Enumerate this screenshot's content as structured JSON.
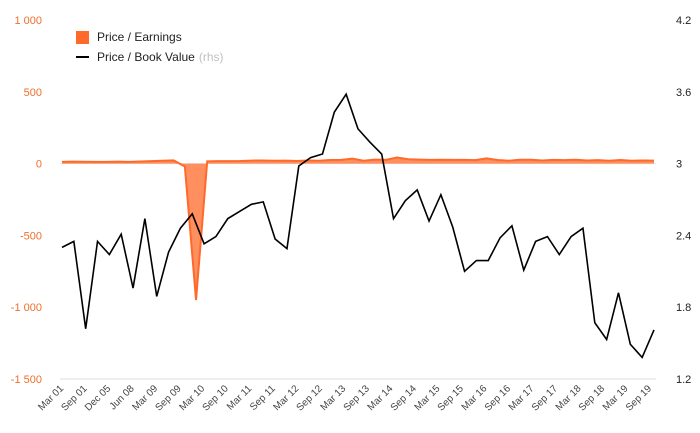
{
  "chart_data": {
    "type": "line",
    "legend": {
      "pe_label": "Price / Earnings",
      "pb_label": "Price / Book Value",
      "pb_note": "(rhs)"
    },
    "colors": {
      "pe": "#ff6a2a",
      "pb": "#000000",
      "left_axis": "#f06e2a",
      "right_axis": "#222222"
    },
    "left_axis": {
      "ylim": [
        -1500,
        1000
      ],
      "ticks": [
        1000,
        500,
        0,
        -500,
        -1000,
        -1500
      ],
      "tick_labels": [
        "1 000",
        "500",
        "0",
        "-500",
        "-1 000",
        "-1 500"
      ]
    },
    "right_axis": {
      "ylim": [
        1.2,
        4.2
      ],
      "ticks": [
        4.2,
        3.6,
        3,
        2.4,
        1.8,
        1.2
      ],
      "tick_labels": [
        "4.2",
        "3.6",
        "3",
        "2.4",
        "1.8",
        "1.2"
      ]
    },
    "x_labels": [
      "Mar 01",
      "Sep 01",
      "Dec 05",
      "Jun 08",
      "Mar 09",
      "Sep 09",
      "Mar 10",
      "Sep 10",
      "Mar 11",
      "Sep 11",
      "Mar 12",
      "Sep 12",
      "Mar 13",
      "Sep 13",
      "Mar 14",
      "Sep 14",
      "Mar 15",
      "Sep 15",
      "Mar 16",
      "Sep 16",
      "Mar 17",
      "Sep 17",
      "Mar 18",
      "Sep 18",
      "Mar 19",
      "Sep 19"
    ],
    "series": [
      {
        "name": "Price / Earnings",
        "axis": "left",
        "style": "area",
        "values": [
          12,
          14,
          13,
          12,
          12,
          14,
          12,
          15,
          17,
          20,
          22,
          -20,
          -950,
          16,
          17,
          17,
          18,
          21,
          22,
          20,
          21,
          18,
          22,
          20,
          25,
          26,
          35,
          20,
          28,
          26,
          42,
          30,
          28,
          26,
          27,
          26,
          26,
          24,
          36,
          25,
          20,
          27,
          27,
          22,
          26,
          24,
          27,
          22,
          24,
          20,
          25,
          20,
          22,
          21
        ]
      },
      {
        "name": "Price / Book Value",
        "axis": "right",
        "style": "line",
        "values": [
          2.3,
          2.35,
          1.62,
          2.35,
          2.24,
          2.41,
          1.96,
          2.54,
          1.89,
          2.26,
          2.46,
          2.58,
          2.33,
          2.39,
          2.54,
          2.6,
          2.66,
          2.68,
          2.37,
          2.29,
          2.98,
          3.05,
          3.08,
          3.43,
          3.58,
          3.29,
          3.18,
          3.08,
          2.54,
          2.69,
          2.78,
          2.52,
          2.74,
          2.47,
          2.1,
          2.19,
          2.19,
          2.38,
          2.48,
          2.11,
          2.35,
          2.39,
          2.24,
          2.39,
          2.46,
          1.67,
          1.53,
          1.92,
          1.49,
          1.38,
          1.61
        ]
      }
    ]
  }
}
